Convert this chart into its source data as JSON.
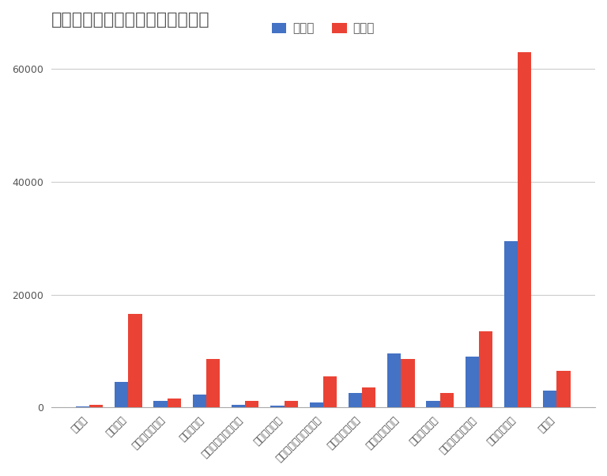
{
  "title": "小・中学校における不登校の要因",
  "categories": [
    "いじめ",
    "友人関係",
    "教職員との関係",
    "学業の不振",
    "クラブ活動、部活動",
    "学校のきまり",
    "入学、転編入学、進級",
    "家庭の生活環境",
    "親子の関わり方",
    "家庭内の不和",
    "生活リズムの乱れ",
    "無気力、不安",
    "その他"
  ],
  "elementary": [
    200,
    4500,
    1200,
    2200,
    400,
    300,
    900,
    2500,
    9500,
    1200,
    9000,
    29500,
    3000
  ],
  "middle": [
    400,
    16500,
    1600,
    8500,
    1200,
    1200,
    5500,
    3500,
    8500,
    2500,
    13500,
    63000,
    6500
  ],
  "legend_labels": [
    "小学校",
    "中学校"
  ],
  "bar_color_elementary": "#4472C4",
  "bar_color_middle": "#EA4335",
  "background_color": "#ffffff",
  "grid_color": "#cccccc",
  "title_color": "#555555",
  "tick_label_color": "#555555",
  "ylim": [
    0,
    65000
  ],
  "yticks": [
    0,
    20000,
    40000,
    60000
  ],
  "title_fontsize": 16,
  "legend_fontsize": 11,
  "tick_fontsize": 9
}
